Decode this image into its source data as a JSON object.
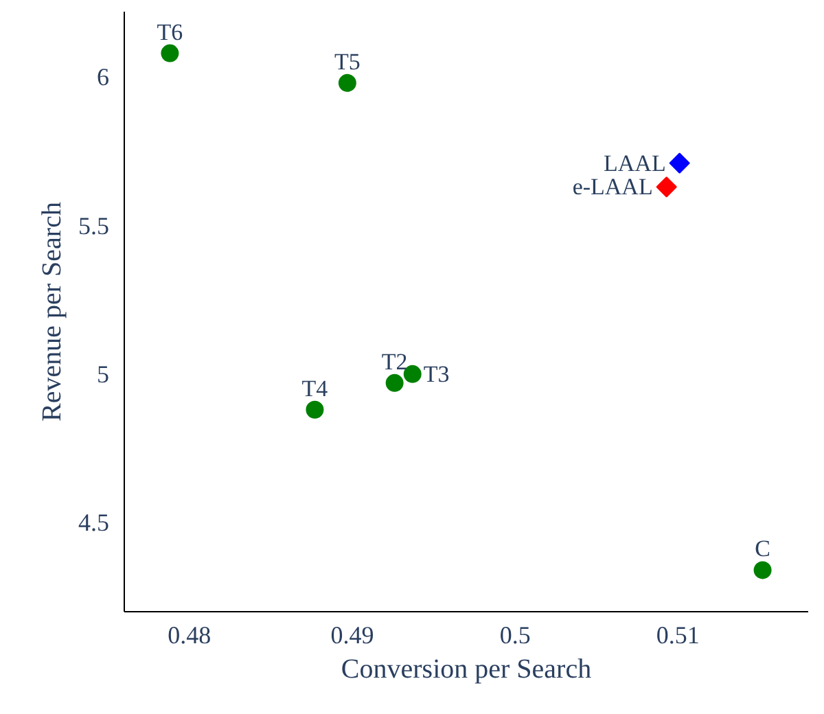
{
  "chart_data": {
    "type": "scatter",
    "xlabel": "Conversion per Search",
    "ylabel": "Revenue per Search",
    "xlim": [
      0.476,
      0.518
    ],
    "xticks": [
      0.48,
      0.49,
      0.5,
      0.51
    ],
    "ylim": [
      4.2,
      6.22
    ],
    "yticks": [
      4.5,
      5,
      5.5,
      6
    ],
    "grid": false,
    "series": [
      {
        "name": "T6",
        "color": "#008000",
        "marker": "circle",
        "x": [
          0.4788
        ],
        "values": [
          6.08
        ]
      },
      {
        "name": "T5",
        "color": "#008000",
        "marker": "circle",
        "x": [
          0.4897
        ],
        "values": [
          5.98
        ]
      },
      {
        "name": "T4",
        "color": "#008000",
        "marker": "circle",
        "x": [
          0.4877
        ],
        "values": [
          4.88
        ]
      },
      {
        "name": "T2",
        "color": "#008000",
        "marker": "circle",
        "x": [
          0.4926
        ],
        "values": [
          4.97
        ]
      },
      {
        "name": "T3",
        "color": "#008000",
        "marker": "circle",
        "x": [
          0.4937
        ],
        "values": [
          5.0
        ]
      },
      {
        "name": "C",
        "color": "#008000",
        "marker": "circle",
        "x": [
          0.5152
        ],
        "values": [
          4.34
        ]
      },
      {
        "name": "LAAL",
        "color": "#0000ff",
        "marker": "diamond",
        "x": [
          0.5101
        ],
        "values": [
          5.71
        ]
      },
      {
        "name": "e-LAAL",
        "color": "#ff0000",
        "marker": "diamond",
        "x": [
          0.5093
        ],
        "values": [
          5.63
        ]
      }
    ]
  }
}
